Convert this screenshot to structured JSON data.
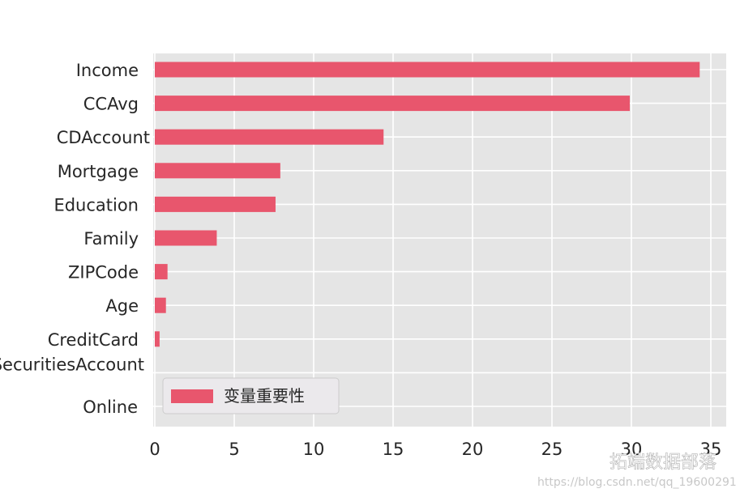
{
  "chart_data": {
    "type": "bar",
    "orientation": "horizontal",
    "categories": [
      "Income",
      "CCAvg",
      "CDAccount",
      "Mortgage",
      "Education",
      "Family",
      "ZIPCode",
      "Age",
      "CreditCard",
      "SecuritiesAccount",
      "Online"
    ],
    "series": [
      {
        "name": "变量重要性",
        "values": [
          34.3,
          29.9,
          14.4,
          7.9,
          7.6,
          3.9,
          0.8,
          0.7,
          0.3,
          0.0,
          0.0
        ]
      }
    ],
    "xlim": [
      0,
      36
    ],
    "xticks": [
      0,
      5,
      10,
      15,
      20,
      25,
      30,
      35
    ],
    "grid": true,
    "legend_position": "lower-left",
    "bar_color": "#e8566d",
    "background_color": "#e5e5e5",
    "grid_color": "#ffffff"
  },
  "watermark": {
    "brand": "拓端数据部落",
    "url": "https://blog.csdn.net/qq_19600291",
    "icon": "wechat-icon"
  }
}
